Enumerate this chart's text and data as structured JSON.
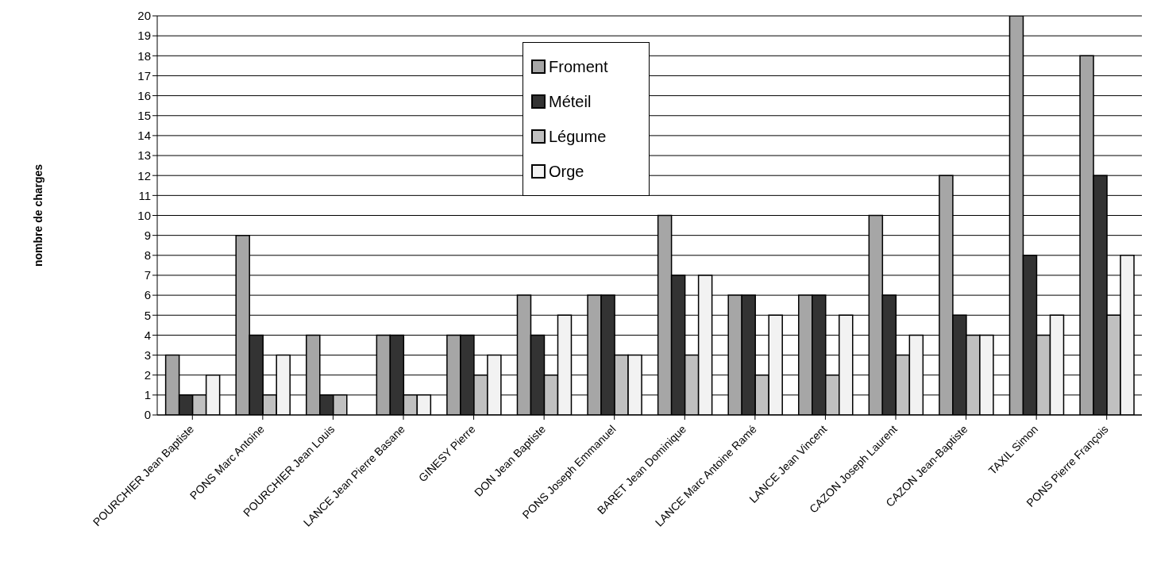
{
  "chart_data": {
    "type": "bar",
    "ylabel": "nombre de charges",
    "categories": [
      "POURCHIER Jean Baptiste",
      "PONS Marc Antoine",
      "POURCHIER Jean Louis",
      "LANCE Jean Pierre Basane",
      "GINESY Pierre",
      "DON Jean Baptiste",
      "PONS Joseph Emmanuel",
      "BARET Jean Dominique",
      "LANCE Marc Antoine Ramé",
      "LANCE Jean Vincent",
      "CAZON Joseph Laurent",
      "CAZON Jean-Baptiste",
      "TAXIL Simon",
      "PONS Pierre François"
    ],
    "series": [
      {
        "name": "Froment",
        "color": "#a6a6a6",
        "values": [
          3,
          9,
          4,
          4,
          4,
          6,
          6,
          10,
          6,
          6,
          10,
          12,
          20,
          18
        ]
      },
      {
        "name": "Méteil",
        "color": "#333333",
        "values": [
          1,
          4,
          1,
          4,
          4,
          4,
          6,
          7,
          6,
          6,
          6,
          5,
          8,
          12
        ]
      },
      {
        "name": "Légume",
        "color": "#c0c0c0",
        "values": [
          1,
          1,
          1,
          1,
          2,
          2,
          3,
          3,
          2,
          2,
          3,
          4,
          4,
          5
        ]
      },
      {
        "name": "Orge",
        "color": "#f2f2f2",
        "values": [
          2,
          3,
          0,
          1,
          3,
          5,
          3,
          7,
          5,
          5,
          4,
          4,
          5,
          8
        ]
      }
    ],
    "ylim": [
      0,
      20
    ],
    "yticks": [
      0,
      1,
      2,
      3,
      4,
      5,
      6,
      7,
      8,
      9,
      10,
      11,
      12,
      13,
      14,
      15,
      16,
      17,
      18,
      19,
      20
    ],
    "grid": "y",
    "legend": "top"
  }
}
